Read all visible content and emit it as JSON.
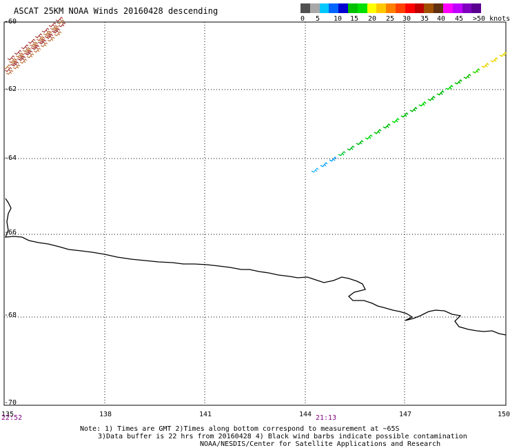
{
  "title": "ASCAT 25KM NOAA Winds 20160428 descending",
  "legend": {
    "colors": [
      "#505050",
      "#a8a8a8",
      "#00c8ff",
      "#0064ff",
      "#0000d0",
      "#00c000",
      "#00e000",
      "#ffff00",
      "#ffc800",
      "#ff8000",
      "#ff4000",
      "#ff0000",
      "#c00000",
      "#a05000",
      "#603010",
      "#ff00ff",
      "#c000ff",
      "#8000c0",
      "#5a0090"
    ],
    "labels": [
      "0",
      "5",
      "10",
      "15",
      "20",
      "25",
      "30",
      "35",
      "40",
      "45",
      ">50 knots"
    ]
  },
  "lat_labels": [
    "-60",
    "-62",
    "-64",
    "-66",
    "-68",
    "-70"
  ],
  "lon_labels": [
    "135",
    "138",
    "141",
    "144",
    "147",
    "150"
  ],
  "times": [
    "22:52",
    "21:13"
  ],
  "notes": [
    "Note: 1) Times are GMT 2)Times along bottom correspond to measurement at ~65S",
    "3)Data buffer is 22 hrs from 20160428 4) Black wind barbs indicate possible contamination",
    "NOAA/NESDIS/Center for Satellite Applications and Research"
  ]
}
